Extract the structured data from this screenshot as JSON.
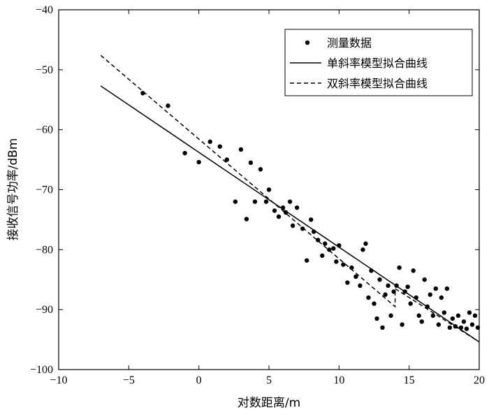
{
  "chart_data": {
    "type": "scatter",
    "xlabel": "对数距离/m",
    "ylabel": "接收信号功率/dBm",
    "xlim": [
      -10,
      20
    ],
    "ylim": [
      -100,
      -40
    ],
    "xticks": [
      -10,
      -5,
      0,
      5,
      10,
      15,
      20
    ],
    "yticks": [
      -100,
      -90,
      -80,
      -70,
      -60,
      -50,
      -40
    ],
    "xtick_labels": [
      "−10",
      "−5",
      "0",
      "5",
      "10",
      "15",
      "20"
    ],
    "ytick_labels": [
      "−100",
      "−90",
      "−80",
      "−70",
      "−60",
      "−50",
      "−40"
    ],
    "grid": false,
    "legend_position": "top-right",
    "legend": [
      {
        "label": "测量数据",
        "style": "dot"
      },
      {
        "label": "单斜率模型拟合曲线",
        "style": "solid"
      },
      {
        "label": "双斜率模型拟合曲线",
        "style": "dashed"
      }
    ],
    "series": [
      {
        "name": "测量数据",
        "type": "scatter",
        "x": [
          -4.0,
          -2.2,
          -1.0,
          0.0,
          0.8,
          1.5,
          2.0,
          2.6,
          3.0,
          3.4,
          3.7,
          4.0,
          4.4,
          4.8,
          5.0,
          5.4,
          5.7,
          6.0,
          6.2,
          6.5,
          6.7,
          7.0,
          7.4,
          7.7,
          8.0,
          8.2,
          8.5,
          8.8,
          9.0,
          9.3,
          9.6,
          9.8,
          10.0,
          10.3,
          10.6,
          10.9,
          11.2,
          11.5,
          11.7,
          11.9,
          12.1,
          12.3,
          12.5,
          12.7,
          12.9,
          13.1,
          13.3,
          13.5,
          13.7,
          13.9,
          14.1,
          14.3,
          14.5,
          14.7,
          14.9,
          15.1,
          15.3,
          15.5,
          15.7,
          15.9,
          16.1,
          16.3,
          16.5,
          16.7,
          16.9,
          17.1,
          17.3,
          17.5,
          17.7,
          17.9,
          18.1,
          18.3,
          18.5,
          18.7,
          18.9,
          19.1,
          19.3,
          19.5,
          19.7,
          19.9
        ],
        "y": [
          -53.9,
          -56.0,
          -63.9,
          -65.4,
          -62.0,
          -62.8,
          -65.0,
          -72.0,
          -63.3,
          -74.9,
          -65.5,
          -72.0,
          -66.6,
          -72.0,
          -70.0,
          -73.5,
          -74.5,
          -73.0,
          -73.8,
          -72.0,
          -76.0,
          -73.0,
          -76.5,
          -81.8,
          -75.0,
          -77.0,
          -78.4,
          -81.0,
          -79.0,
          -80.0,
          -79.8,
          -82.0,
          -79.3,
          -82.5,
          -85.5,
          -83.0,
          -84.5,
          -86.0,
          -80.0,
          -79.0,
          -88.0,
          -83.5,
          -89.0,
          -91.5,
          -85.0,
          -93.0,
          -87.5,
          -86.0,
          -91.0,
          -87.0,
          -86.0,
          -83.0,
          -92.5,
          -87.0,
          -86.2,
          -89.0,
          -83.5,
          -88.0,
          -91.0,
          -92.0,
          -85.0,
          -89.5,
          -87.5,
          -91.0,
          -86.5,
          -92.5,
          -88.0,
          -90.5,
          -86.5,
          -93.0,
          -91.5,
          -92.8,
          -91.0,
          -93.0,
          -92.0,
          -93.2,
          -90.5,
          -92.5,
          -91.0,
          -93.0
        ]
      },
      {
        "name": "单斜率模型拟合曲线",
        "type": "line",
        "style": "solid",
        "x": [
          -7,
          20
        ],
        "y": [
          -52.7,
          -95.4
        ]
      },
      {
        "name": "双斜率模型拟合曲线",
        "type": "line",
        "style": "dashed",
        "x": [
          -7,
          14,
          14,
          20
        ],
        "y": [
          -47.6,
          -89.5,
          -86.5,
          -95.4
        ]
      }
    ]
  }
}
